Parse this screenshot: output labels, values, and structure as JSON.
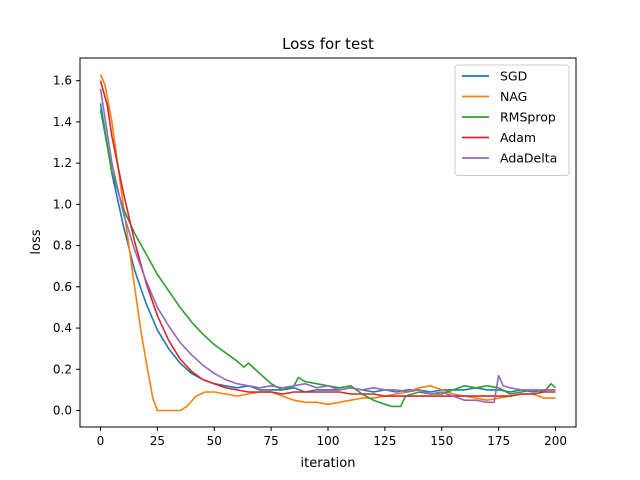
{
  "chart_data": {
    "type": "line",
    "title": "Loss for test",
    "xlabel": "iteration",
    "ylabel": "loss",
    "xlim": [
      -9,
      209
    ],
    "ylim": [
      -0.08,
      1.71
    ],
    "x_ticks": [
      0,
      25,
      50,
      75,
      100,
      125,
      150,
      175,
      200
    ],
    "y_ticks": [
      0.0,
      0.2,
      0.4,
      0.6,
      0.8,
      1.0,
      1.2,
      1.4,
      1.6
    ],
    "x_tick_labels": [
      "0",
      "25",
      "50",
      "75",
      "100",
      "125",
      "150",
      "175",
      "200"
    ],
    "y_tick_labels": [
      "0.0",
      "0.2",
      "0.4",
      "0.6",
      "0.8",
      "1.0",
      "1.2",
      "1.4",
      "1.6"
    ],
    "legend_position": "top-right",
    "grid": false,
    "series": [
      {
        "name": "SGD",
        "color": "#1f77b4",
        "x": [
          0,
          5,
          10,
          15,
          20,
          25,
          30,
          35,
          40,
          45,
          50,
          55,
          60,
          65,
          70,
          75,
          80,
          85,
          90,
          95,
          100,
          105,
          110,
          115,
          120,
          125,
          130,
          135,
          140,
          145,
          150,
          155,
          160,
          165,
          170,
          175,
          180,
          185,
          190,
          195,
          200
        ],
        "y": [
          1.49,
          1.15,
          0.9,
          0.68,
          0.52,
          0.39,
          0.3,
          0.23,
          0.18,
          0.15,
          0.13,
          0.12,
          0.11,
          0.12,
          0.1,
          0.1,
          0.1,
          0.11,
          0.09,
          0.1,
          0.1,
          0.1,
          0.11,
          0.1,
          0.09,
          0.1,
          0.09,
          0.1,
          0.1,
          0.09,
          0.1,
          0.1,
          0.1,
          0.11,
          0.1,
          0.1,
          0.09,
          0.1,
          0.09,
          0.1,
          0.1
        ]
      },
      {
        "name": "NAG",
        "color": "#ff7f0e",
        "x": [
          0,
          2,
          5,
          10,
          15,
          18,
          21,
          23,
          25,
          30,
          35,
          38,
          42,
          46,
          50,
          55,
          60,
          65,
          70,
          75,
          80,
          85,
          90,
          95,
          100,
          105,
          110,
          115,
          120,
          125,
          130,
          135,
          140,
          145,
          150,
          155,
          160,
          165,
          170,
          175,
          180,
          185,
          190,
          195,
          200
        ],
        "y": [
          1.63,
          1.58,
          1.4,
          1.0,
          0.6,
          0.37,
          0.18,
          0.06,
          0.0,
          0.0,
          0.0,
          0.02,
          0.07,
          0.09,
          0.09,
          0.08,
          0.07,
          0.08,
          0.09,
          0.09,
          0.07,
          0.05,
          0.04,
          0.04,
          0.03,
          0.04,
          0.05,
          0.06,
          0.06,
          0.07,
          0.08,
          0.09,
          0.11,
          0.12,
          0.1,
          0.08,
          0.07,
          0.06,
          0.05,
          0.06,
          0.07,
          0.08,
          0.08,
          0.06,
          0.06
        ]
      },
      {
        "name": "RMSprop",
        "color": "#2ca02c",
        "x": [
          0,
          5,
          10,
          15,
          20,
          25,
          30,
          35,
          40,
          45,
          50,
          55,
          60,
          63,
          65,
          70,
          75,
          80,
          85,
          87,
          90,
          95,
          100,
          105,
          110,
          115,
          120,
          125,
          128,
          132,
          134,
          140,
          145,
          150,
          155,
          160,
          165,
          170,
          175,
          180,
          185,
          190,
          195,
          198,
          200
        ],
        "y": [
          1.46,
          1.16,
          0.98,
          0.86,
          0.76,
          0.66,
          0.58,
          0.5,
          0.43,
          0.37,
          0.32,
          0.28,
          0.24,
          0.21,
          0.23,
          0.18,
          0.13,
          0.1,
          0.12,
          0.16,
          0.14,
          0.13,
          0.12,
          0.11,
          0.12,
          0.08,
          0.05,
          0.03,
          0.02,
          0.02,
          0.07,
          0.09,
          0.08,
          0.08,
          0.1,
          0.12,
          0.11,
          0.12,
          0.11,
          0.08,
          0.09,
          0.1,
          0.09,
          0.13,
          0.11
        ]
      },
      {
        "name": "Adam",
        "color": "#d62728",
        "x": [
          0,
          3,
          5,
          10,
          15,
          20,
          25,
          30,
          35,
          40,
          45,
          50,
          55,
          60,
          65,
          70,
          75,
          80,
          85,
          90,
          95,
          100,
          105,
          110,
          115,
          120,
          125,
          130,
          135,
          140,
          145,
          150,
          155,
          160,
          165,
          170,
          175,
          180,
          185,
          190,
          195,
          200
        ],
        "y": [
          1.6,
          1.48,
          1.33,
          1.06,
          0.82,
          0.62,
          0.46,
          0.34,
          0.25,
          0.19,
          0.15,
          0.13,
          0.11,
          0.1,
          0.09,
          0.09,
          0.09,
          0.08,
          0.09,
          0.09,
          0.09,
          0.09,
          0.09,
          0.08,
          0.08,
          0.08,
          0.07,
          0.07,
          0.07,
          0.07,
          0.07,
          0.07,
          0.07,
          0.07,
          0.07,
          0.07,
          0.07,
          0.07,
          0.08,
          0.08,
          0.09,
          0.09
        ]
      },
      {
        "name": "AdaDelta",
        "color": "#9467bd",
        "x": [
          0,
          5,
          10,
          15,
          20,
          25,
          30,
          35,
          40,
          45,
          50,
          55,
          60,
          65,
          70,
          75,
          80,
          85,
          90,
          95,
          100,
          105,
          110,
          115,
          120,
          125,
          130,
          135,
          140,
          145,
          150,
          155,
          160,
          165,
          170,
          173,
          175,
          177,
          180,
          185,
          190,
          195,
          200
        ],
        "y": [
          1.56,
          1.2,
          0.96,
          0.78,
          0.63,
          0.5,
          0.41,
          0.33,
          0.27,
          0.22,
          0.18,
          0.15,
          0.13,
          0.12,
          0.11,
          0.12,
          0.11,
          0.12,
          0.13,
          0.11,
          0.12,
          0.1,
          0.11,
          0.1,
          0.11,
          0.1,
          0.1,
          0.09,
          0.1,
          0.08,
          0.09,
          0.07,
          0.05,
          0.05,
          0.04,
          0.04,
          0.17,
          0.12,
          0.11,
          0.1,
          0.1,
          0.1,
          0.1
        ]
      }
    ]
  }
}
